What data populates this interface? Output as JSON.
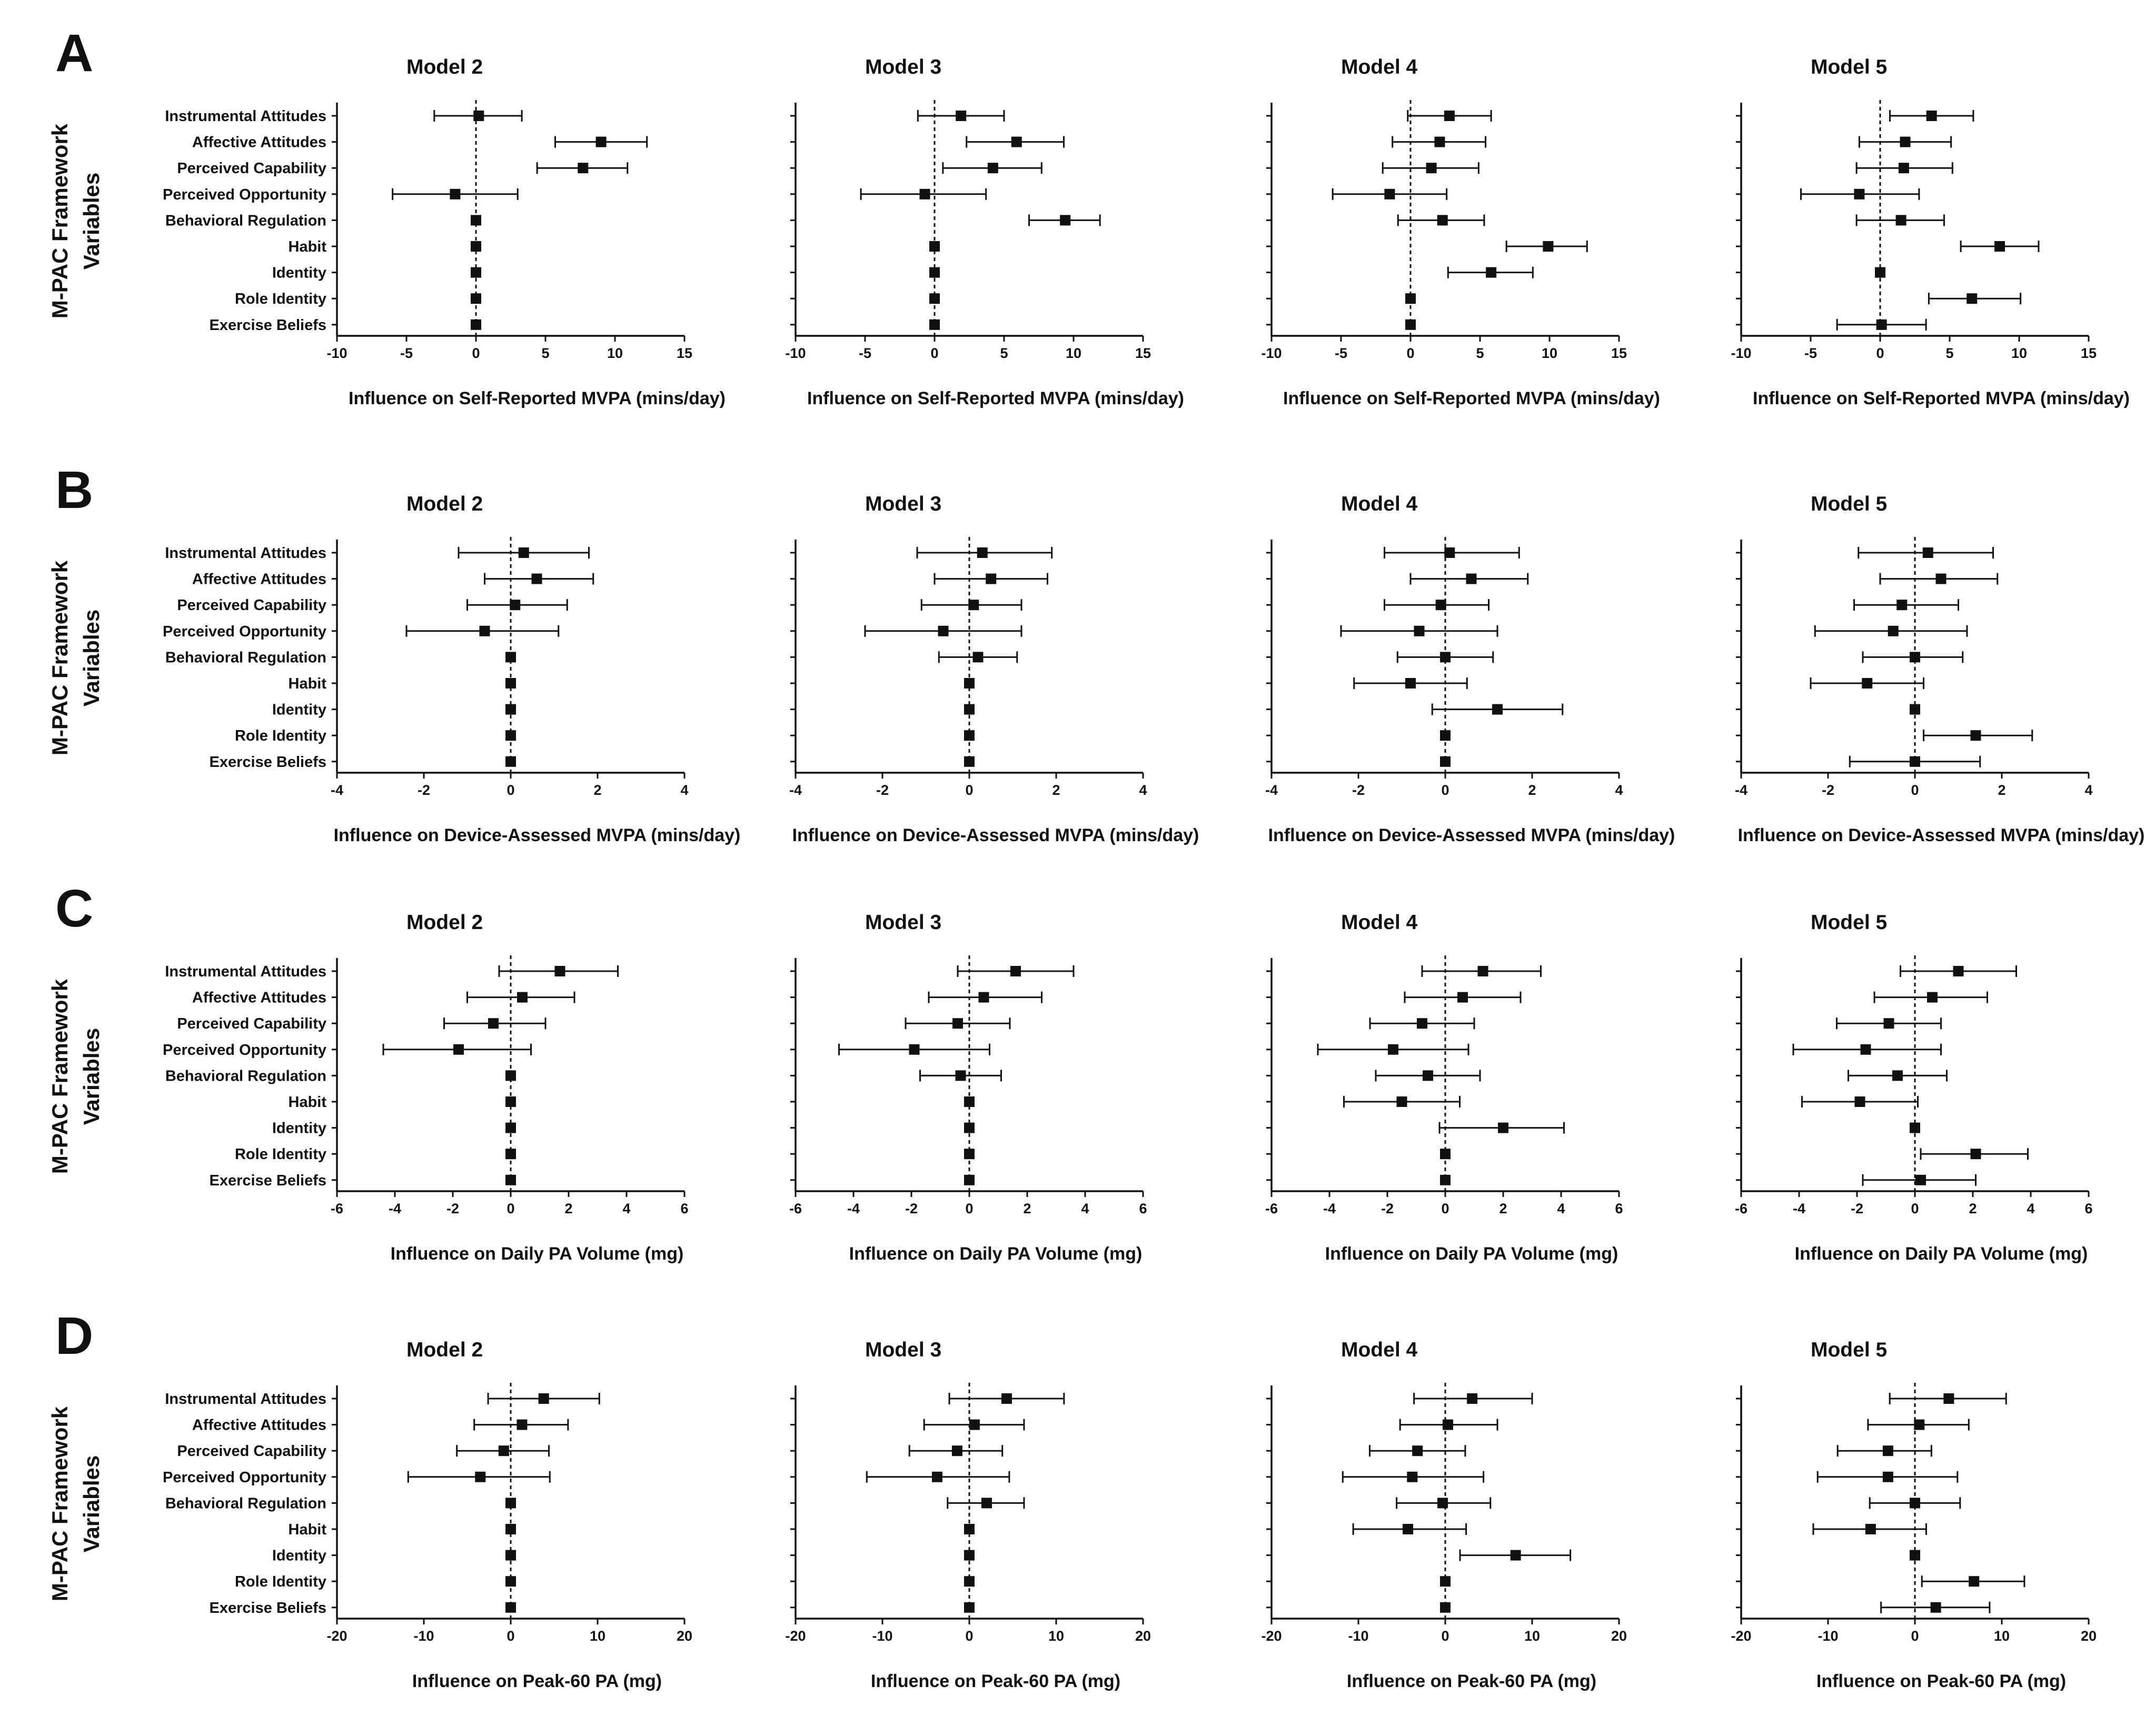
{
  "figure": {
    "y_axis_label_line1": "M-PAC Framework",
    "y_axis_label_line2": "Variables",
    "models": [
      "Model 2",
      "Model 3",
      "Model 4",
      "Model 5"
    ]
  },
  "colors": {
    "ink": "#111111",
    "background": "#ffffff"
  },
  "chart_data": [
    {
      "panel": "A",
      "type": "forest",
      "xlabel": "Influence on Self-Reported MVPA (mins/day)",
      "xlim": [
        -10,
        15
      ],
      "xticks": [
        -10,
        -5,
        0,
        5,
        10,
        15
      ],
      "categories": [
        "Instrumental Attitudes",
        "Affective Attitudes",
        "Perceived Capability",
        "Perceived Opportunity",
        "Behavioral Regulation",
        "Habit",
        "Identity",
        "Role Identity",
        "Exercise Beliefs"
      ],
      "series": [
        {
          "name": "Model 2",
          "estimates": [
            0.2,
            9.0,
            7.7,
            -1.5,
            0,
            0,
            0,
            0,
            0
          ],
          "lower": [
            -3.0,
            5.7,
            4.4,
            -6.0,
            0,
            0,
            0,
            0,
            0
          ],
          "upper": [
            3.3,
            12.3,
            10.9,
            3.0,
            0,
            0,
            0,
            0,
            0
          ]
        },
        {
          "name": "Model 3",
          "estimates": [
            1.9,
            5.9,
            4.2,
            -0.7,
            9.4,
            0,
            0,
            0,
            0
          ],
          "lower": [
            -1.2,
            2.3,
            0.6,
            -5.3,
            6.8,
            0,
            0,
            0,
            0
          ],
          "upper": [
            5.0,
            9.3,
            7.7,
            3.7,
            11.9,
            0,
            0,
            0,
            0
          ]
        },
        {
          "name": "Model 4",
          "estimates": [
            2.8,
            2.1,
            1.5,
            -1.5,
            2.3,
            9.9,
            5.8,
            0,
            0
          ],
          "lower": [
            -0.2,
            -1.3,
            -2.0,
            -5.6,
            -0.9,
            6.9,
            2.7,
            0,
            0
          ],
          "upper": [
            5.8,
            5.4,
            4.9,
            2.6,
            5.3,
            12.7,
            8.8,
            0,
            0
          ]
        },
        {
          "name": "Model 5",
          "estimates": [
            3.7,
            1.8,
            1.7,
            -1.5,
            1.5,
            8.6,
            0,
            6.6,
            0.1
          ],
          "lower": [
            0.7,
            -1.5,
            -1.7,
            -5.7,
            -1.7,
            5.8,
            0,
            3.5,
            -3.1
          ],
          "upper": [
            6.7,
            5.1,
            5.2,
            2.8,
            4.6,
            11.4,
            0,
            10.1,
            3.3
          ]
        }
      ]
    },
    {
      "panel": "B",
      "type": "forest",
      "xlabel": "Influence on Device-Assessed MVPA (mins/day)",
      "xlim": [
        -4,
        4
      ],
      "xticks": [
        -4,
        -2,
        0,
        2,
        4
      ],
      "categories": [
        "Instrumental Attitudes",
        "Affective Attitudes",
        "Perceived Capability",
        "Perceived Opportunity",
        "Behavioral Regulation",
        "Habit",
        "Identity",
        "Role Identity",
        "Exercise Beliefs"
      ],
      "series": [
        {
          "name": "Model 2",
          "estimates": [
            0.3,
            0.6,
            0.1,
            -0.6,
            0,
            0,
            0,
            0,
            0
          ],
          "lower": [
            -1.2,
            -0.6,
            -1.0,
            -2.4,
            0,
            0,
            0,
            0,
            0
          ],
          "upper": [
            1.8,
            1.9,
            1.3,
            1.1,
            0,
            0,
            0,
            0,
            0
          ]
        },
        {
          "name": "Model 3",
          "estimates": [
            0.3,
            0.5,
            0.1,
            -0.6,
            0.2,
            0,
            0,
            0,
            0
          ],
          "lower": [
            -1.2,
            -0.8,
            -1.1,
            -2.4,
            -0.7,
            0,
            0,
            0,
            0
          ],
          "upper": [
            1.9,
            1.8,
            1.2,
            1.2,
            1.1,
            0,
            0,
            0,
            0
          ]
        },
        {
          "name": "Model 4",
          "estimates": [
            0.1,
            0.6,
            -0.1,
            -0.6,
            0,
            -0.8,
            1.2,
            0,
            0
          ],
          "lower": [
            -1.4,
            -0.8,
            -1.4,
            -2.4,
            -1.1,
            -2.1,
            -0.3,
            0,
            0
          ],
          "upper": [
            1.7,
            1.9,
            1.0,
            1.2,
            1.1,
            0.5,
            2.7,
            0,
            0
          ]
        },
        {
          "name": "Model 5",
          "estimates": [
            0.3,
            0.6,
            -0.3,
            -0.5,
            0,
            -1.1,
            0,
            1.4,
            0
          ],
          "lower": [
            -1.3,
            -0.8,
            -1.4,
            -2.3,
            -1.2,
            -2.4,
            0,
            0.2,
            -1.5
          ],
          "upper": [
            1.8,
            1.9,
            1.0,
            1.2,
            1.1,
            0.2,
            0,
            2.7,
            1.5
          ]
        }
      ]
    },
    {
      "panel": "C",
      "type": "forest",
      "xlabel": "Influence on Daily PA Volume (mg)",
      "xlim": [
        -6,
        6
      ],
      "xticks": [
        -6,
        -4,
        -2,
        0,
        2,
        4,
        6
      ],
      "categories": [
        "Instrumental Attitudes",
        "Affective Attitudes",
        "Perceived Capability",
        "Perceived Opportunity",
        "Behavioral Regulation",
        "Habit",
        "Identity",
        "Role Identity",
        "Exercise Beliefs"
      ],
      "series": [
        {
          "name": "Model 2",
          "estimates": [
            1.7,
            0.4,
            -0.6,
            -1.8,
            0,
            0,
            0,
            0,
            0
          ],
          "lower": [
            -0.4,
            -1.5,
            -2.3,
            -4.4,
            0,
            0,
            0,
            0,
            0
          ],
          "upper": [
            3.7,
            2.2,
            1.2,
            0.7,
            0,
            0,
            0,
            0,
            0
          ]
        },
        {
          "name": "Model 3",
          "estimates": [
            1.6,
            0.5,
            -0.4,
            -1.9,
            -0.3,
            0,
            0,
            0,
            0
          ],
          "lower": [
            -0.4,
            -1.4,
            -2.2,
            -4.5,
            -1.7,
            0,
            0,
            0,
            0
          ],
          "upper": [
            3.6,
            2.5,
            1.4,
            0.7,
            1.1,
            0,
            0,
            0,
            0
          ]
        },
        {
          "name": "Model 4",
          "estimates": [
            1.3,
            0.6,
            -0.8,
            -1.8,
            -0.6,
            -1.5,
            2.0,
            0,
            0
          ],
          "lower": [
            -0.8,
            -1.4,
            -2.6,
            -4.4,
            -2.4,
            -3.5,
            -0.2,
            0,
            0
          ],
          "upper": [
            3.3,
            2.6,
            1.0,
            0.8,
            1.2,
            0.5,
            4.1,
            0,
            0
          ]
        },
        {
          "name": "Model 5",
          "estimates": [
            1.5,
            0.6,
            -0.9,
            -1.7,
            -0.6,
            -1.9,
            0,
            2.1,
            0.2
          ],
          "lower": [
            -0.5,
            -1.4,
            -2.7,
            -4.2,
            -2.3,
            -3.9,
            0,
            0.2,
            -1.8
          ],
          "upper": [
            3.5,
            2.5,
            0.9,
            0.9,
            1.1,
            0.1,
            0,
            3.9,
            2.1
          ]
        }
      ]
    },
    {
      "panel": "D",
      "type": "forest",
      "xlabel": "Influence on Peak-60 PA (mg)",
      "xlim": [
        -20,
        20
      ],
      "xticks": [
        -20,
        -10,
        0,
        10,
        20
      ],
      "categories": [
        "Instrumental Attitudes",
        "Affective Attitudes",
        "Perceived Capability",
        "Perceived Opportunity",
        "Behavioral Regulation",
        "Habit",
        "Identity",
        "Role Identity",
        "Exercise Beliefs"
      ],
      "series": [
        {
          "name": "Model 2",
          "estimates": [
            3.8,
            1.3,
            -0.8,
            -3.5,
            0,
            0,
            0,
            0,
            0
          ],
          "lower": [
            -2.6,
            -4.2,
            -6.2,
            -11.8,
            0,
            0,
            0,
            0,
            0
          ],
          "upper": [
            10.2,
            6.6,
            4.4,
            4.5,
            0,
            0,
            0,
            0,
            0
          ]
        },
        {
          "name": "Model 3",
          "estimates": [
            4.3,
            0.6,
            -1.4,
            -3.7,
            2.0,
            0,
            0,
            0,
            0
          ],
          "lower": [
            -2.3,
            -5.2,
            -6.9,
            -11.8,
            -2.5,
            0,
            0,
            0,
            0
          ],
          "upper": [
            10.9,
            6.3,
            3.8,
            4.6,
            6.3,
            0,
            0,
            0,
            0
          ]
        },
        {
          "name": "Model 4",
          "estimates": [
            3.1,
            0.3,
            -3.2,
            -3.8,
            -0.3,
            -4.3,
            8.1,
            0,
            0
          ],
          "lower": [
            -3.6,
            -5.2,
            -8.7,
            -11.8,
            -5.6,
            -10.6,
            1.7,
            0,
            0
          ],
          "upper": [
            10.0,
            6.0,
            2.3,
            4.4,
            5.2,
            2.4,
            14.4,
            0,
            0
          ]
        },
        {
          "name": "Model 5",
          "estimates": [
            3.9,
            0.5,
            -3.1,
            -3.1,
            0,
            -5.1,
            0,
            6.8,
            2.4
          ],
          "lower": [
            -2.9,
            -5.4,
            -8.9,
            -11.2,
            -5.2,
            -11.7,
            0,
            0.8,
            -3.9
          ],
          "upper": [
            10.5,
            6.2,
            1.9,
            4.9,
            5.2,
            1.3,
            0,
            12.6,
            8.6
          ]
        }
      ]
    }
  ]
}
